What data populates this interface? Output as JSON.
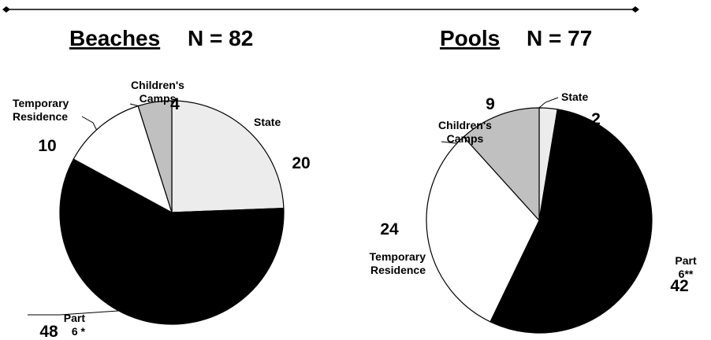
{
  "chart_data": [
    {
      "type": "pie",
      "title": "Beaches",
      "subtitle": "N = 82",
      "categories": [
        "State",
        "Part 6 *",
        "Temporary Residence",
        "Children's Camps"
      ],
      "values": [
        20,
        48,
        10,
        4
      ],
      "colors": [
        "#ececec",
        "#000000",
        "#ffffff",
        "#c0c0c0"
      ]
    },
    {
      "type": "pie",
      "title": "Pools",
      "subtitle": "N = 77",
      "categories": [
        "State",
        "Part 6**",
        "Temporary Residence",
        "Children's Camps"
      ],
      "values": [
        2,
        42,
        24,
        9
      ],
      "colors": [
        "#ececec",
        "#000000",
        "#ffffff",
        "#c0c0c0"
      ]
    }
  ]
}
